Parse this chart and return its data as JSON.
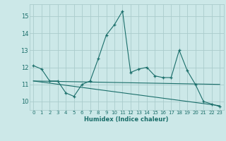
{
  "xlabel": "Humidex (Indice chaleur)",
  "bg_color": "#cce8e8",
  "grid_color": "#aacccc",
  "line_color": "#1a6e6a",
  "xlim": [
    -0.5,
    23.5
  ],
  "ylim": [
    9.5,
    15.7
  ],
  "yticks": [
    10,
    11,
    12,
    13,
    14,
    15
  ],
  "xticks": [
    0,
    1,
    2,
    3,
    4,
    5,
    6,
    7,
    8,
    9,
    10,
    11,
    12,
    13,
    14,
    15,
    16,
    17,
    18,
    19,
    20,
    21,
    22,
    23
  ],
  "main_x": [
    0,
    1,
    2,
    3,
    4,
    5,
    6,
    7,
    8,
    9,
    10,
    11,
    12,
    13,
    14,
    15,
    16,
    17,
    18,
    19,
    20,
    21,
    22,
    23
  ],
  "main_y": [
    12.1,
    11.9,
    11.2,
    11.2,
    10.5,
    10.3,
    11.0,
    11.2,
    12.5,
    13.9,
    14.5,
    15.3,
    11.7,
    11.9,
    12.0,
    11.5,
    11.4,
    11.4,
    13.0,
    11.8,
    11.0,
    10.0,
    9.85,
    9.7
  ],
  "line1_x": [
    0,
    23
  ],
  "line1_y": [
    11.2,
    11.0
  ],
  "line2_x": [
    0,
    23
  ],
  "line2_y": [
    11.2,
    9.75
  ]
}
